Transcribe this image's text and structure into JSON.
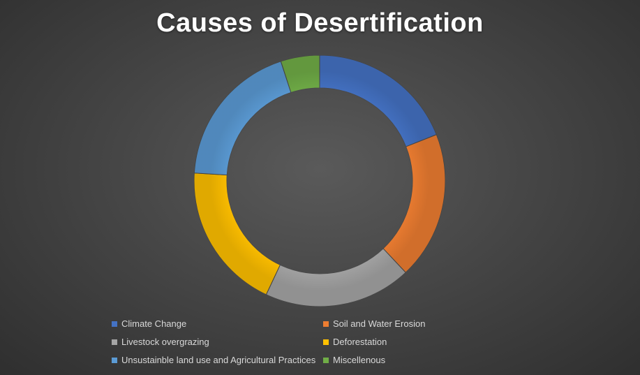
{
  "chart_data": {
    "type": "pie",
    "style": "donut",
    "title": "Causes of Desertification",
    "categories": [
      "Climate Change",
      "Soil and Water Erosion",
      "Livestock overgrazing",
      "Deforestation",
      "Unsustainble land use and Agricultural Practices",
      "Miscellenous"
    ],
    "values": [
      19,
      19,
      19,
      19,
      19,
      5
    ],
    "colors": [
      "#4472C4",
      "#ED7D31",
      "#A5A5A5",
      "#FFC000",
      "#5B9BD5",
      "#70AD47"
    ],
    "legend_position": "bottom",
    "legend_columns": 2
  }
}
